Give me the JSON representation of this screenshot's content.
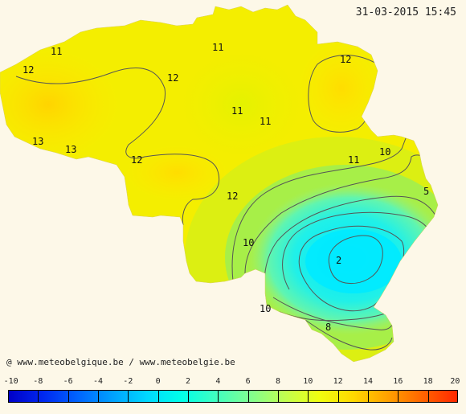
{
  "timestamp": "31-03-2015 15:45",
  "credit": "@ www.meteobelgique.be / www.meteobelgie.be",
  "scale": {
    "min": -10,
    "max": 20,
    "labels": [
      "-10",
      "-8",
      "-6",
      "-4",
      "-2",
      "0",
      "2",
      "4",
      "6",
      "8",
      "10",
      "12",
      "14",
      "16",
      "18",
      "20"
    ],
    "colors": [
      "#0000c8",
      "#0028f0",
      "#0064ff",
      "#00a0ff",
      "#00d8ff",
      "#00ffe8",
      "#40ffc0",
      "#80ff90",
      "#c0ff50",
      "#f0ff10",
      "#ffd800",
      "#ffa000",
      "#ff6400",
      "#ff2800"
    ]
  },
  "contour_labels": [
    {
      "text": "11"
    },
    {
      "text": "11"
    },
    {
      "text": "12"
    },
    {
      "text": "12"
    },
    {
      "text": "12"
    },
    {
      "text": "11"
    },
    {
      "text": "11"
    },
    {
      "text": "13"
    },
    {
      "text": "13"
    },
    {
      "text": "12"
    },
    {
      "text": "11"
    },
    {
      "text": "10"
    },
    {
      "text": "12"
    },
    {
      "text": "5"
    },
    {
      "text": "10"
    },
    {
      "text": "2"
    },
    {
      "text": "10"
    },
    {
      "text": "8"
    }
  ]
}
